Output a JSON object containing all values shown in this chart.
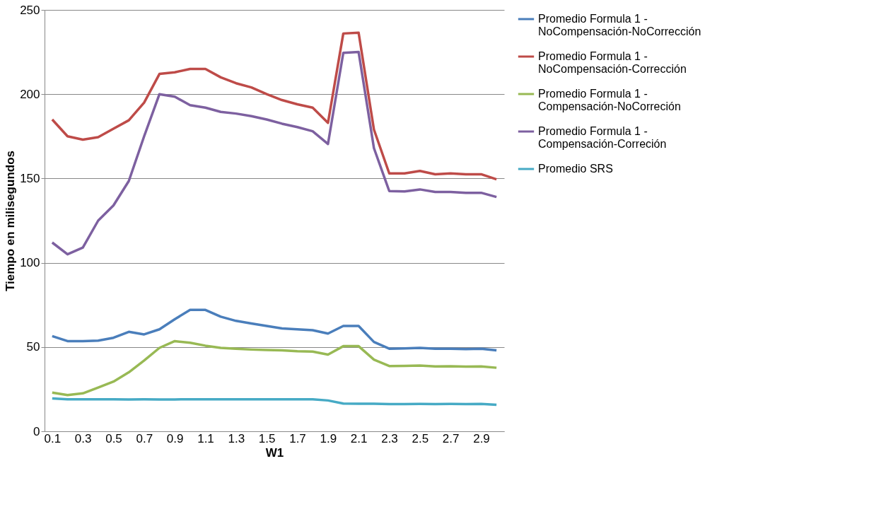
{
  "chart_data": {
    "type": "line",
    "xlabel": "W1",
    "ylabel": "Tiempo en milisegundos",
    "categories": [
      "0.1",
      null,
      "0.3",
      null,
      "0.5",
      null,
      "0.7",
      null,
      "0.9",
      null,
      "1.1",
      null,
      "1.3",
      null,
      "1.5",
      null,
      "1.7",
      null,
      "1.9",
      null,
      "2.1",
      null,
      "2.3",
      null,
      "2.5",
      null,
      "2.7",
      null,
      "2.9",
      null
    ],
    "series": [
      {
        "name": "Promedio Formula 1 - NoCompensación-NoCorrección",
        "color": "#4a7ebb",
        "values": [
          56.5,
          53.5,
          53.5,
          53.8,
          55.5,
          59,
          57.5,
          60.5,
          66.5,
          72,
          72,
          68,
          65.5,
          64,
          62.5,
          61,
          60.5,
          60,
          58,
          62.5,
          62.5,
          53,
          49,
          49.2,
          49.5,
          49,
          49,
          48.8,
          49,
          48
        ]
      },
      {
        "name": "Promedio Formula 1 - NoCompensación-Corrección",
        "color": "#be4b48",
        "values": [
          185,
          175,
          173,
          174.5,
          179.5,
          184.5,
          195,
          212,
          213,
          215,
          215,
          210,
          206.5,
          204,
          200,
          196.5,
          194,
          192,
          183,
          236,
          236.5,
          179,
          153,
          153,
          154.5,
          152.5,
          153,
          152.5,
          152.5,
          149.5
        ]
      },
      {
        "name": "Promedio Formula 1 - Compensación-NoCorreción",
        "color": "#98b954",
        "values": [
          23,
          21.5,
          22.5,
          26,
          29.5,
          35,
          42,
          49.5,
          53.5,
          52.5,
          50.8,
          49.5,
          49,
          48.5,
          48.2,
          48,
          47.5,
          47.3,
          45.5,
          50.5,
          50.5,
          42.5,
          38.7,
          38.8,
          39,
          38.5,
          38.6,
          38.4,
          38.5,
          37.7
        ]
      },
      {
        "name": "Promedio Formula 1 - Compensación-Correción",
        "color": "#7d60a0",
        "values": [
          112,
          105,
          109,
          125,
          134,
          148.5,
          175,
          200,
          198.5,
          193.5,
          192,
          189.5,
          188.5,
          187,
          185,
          182.5,
          180.5,
          178,
          170.5,
          224.5,
          225,
          168,
          142.5,
          142.3,
          143.5,
          142,
          142,
          141.5,
          141.5,
          139
        ]
      },
      {
        "name": "Promedio SRS",
        "color": "#46aac5",
        "values": [
          19.5,
          19,
          19,
          19,
          19,
          18.9,
          19,
          18.9,
          18.9,
          19,
          19,
          19,
          19,
          19,
          19,
          19,
          19,
          19,
          18.3,
          16.5,
          16.4,
          16.4,
          16.2,
          16.2,
          16.3,
          16.2,
          16.3,
          16.2,
          16.3,
          15.7
        ]
      }
    ],
    "ylim": [
      0,
      250
    ],
    "yticks": [
      0,
      50,
      100,
      150,
      200,
      250
    ],
    "grid": "y",
    "legend": "right",
    "marker": "none",
    "line_style": "solid"
  }
}
